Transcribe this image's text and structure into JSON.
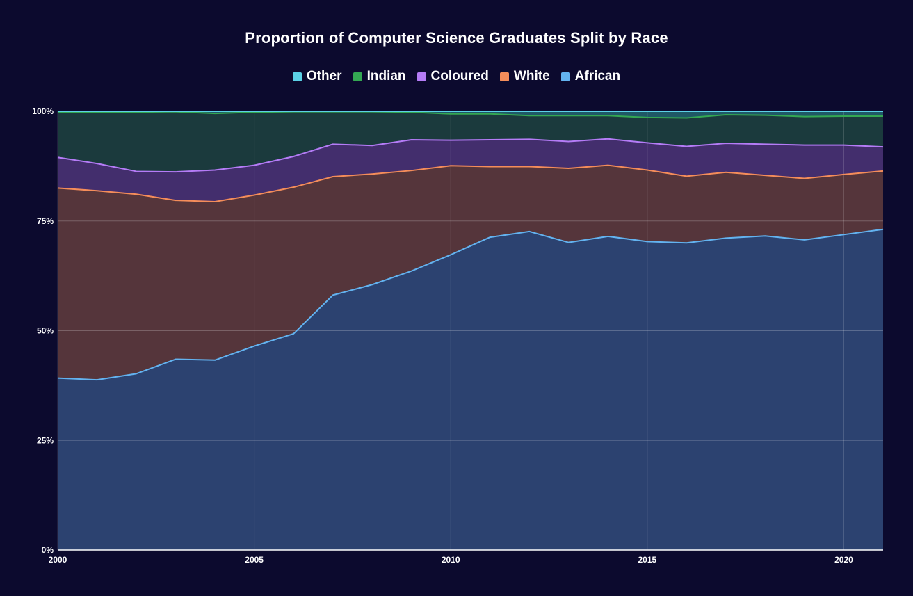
{
  "chart_data": {
    "type": "area",
    "stacked": true,
    "percent": true,
    "title": "Proportion of Computer Science Graduates Split by Race",
    "xlabel": "",
    "ylabel": "",
    "ylim": [
      0,
      100
    ],
    "xlim": [
      2000,
      2021
    ],
    "legend_position": "top",
    "x": [
      2000,
      2001,
      2002,
      2003,
      2004,
      2005,
      2006,
      2007,
      2008,
      2009,
      2010,
      2011,
      2012,
      2013,
      2014,
      2015,
      2016,
      2017,
      2018,
      2019,
      2020,
      2021
    ],
    "x_ticks": [
      "2000",
      "2005",
      "2010",
      "2015",
      "2020"
    ],
    "y_ticks": [
      "0%",
      "25%",
      "50%",
      "75%",
      "100%"
    ],
    "legend": [
      "Other",
      "Indian",
      "Coloured",
      "White",
      "African"
    ],
    "colors": {
      "Other": "#5bd1e6",
      "Indian": "#34a853",
      "Coloured": "#b57cf7",
      "White": "#f58d5a",
      "African": "#63b3f0"
    },
    "fill_colors": {
      "Other": "#1f5866",
      "Indian": "#1b3a3d",
      "Coloured": "#432e6d",
      "White": "#55353b",
      "African": "#2c4270"
    },
    "series": [
      {
        "name": "African",
        "values": [
          39.2,
          38.8,
          40.2,
          43.5,
          43.3,
          46.5,
          49.3,
          58.1,
          60.5,
          63.6,
          67.3,
          71.3,
          72.6,
          70.1,
          71.5,
          70.3,
          70.0,
          71.1,
          71.6,
          70.7,
          71.9,
          73.1
        ]
      },
      {
        "name": "White",
        "values": [
          43.3,
          43.1,
          40.9,
          36.2,
          36.1,
          34.4,
          33.4,
          27.0,
          25.2,
          22.9,
          20.3,
          16.1,
          14.8,
          16.9,
          16.2,
          16.3,
          15.2,
          15.0,
          13.8,
          14.0,
          13.7,
          13.3
        ]
      },
      {
        "name": "Coloured",
        "values": [
          7.0,
          6.2,
          5.2,
          6.5,
          7.2,
          6.8,
          7.0,
          7.4,
          6.5,
          7.0,
          5.8,
          6.1,
          6.2,
          6.1,
          6.0,
          6.2,
          6.8,
          6.6,
          7.1,
          7.6,
          6.7,
          5.5
        ]
      },
      {
        "name": "Indian",
        "values": [
          10.2,
          11.6,
          13.5,
          13.7,
          12.9,
          12.1,
          10.2,
          7.4,
          7.7,
          6.3,
          6.0,
          5.9,
          5.4,
          5.9,
          5.3,
          5.8,
          6.5,
          6.5,
          6.6,
          6.5,
          6.6,
          7.0
        ]
      },
      {
        "name": "Other",
        "values": [
          0.3,
          0.3,
          0.2,
          0.1,
          0.5,
          0.2,
          0.1,
          0.1,
          0.1,
          0.2,
          0.6,
          0.6,
          1.0,
          1.0,
          1.0,
          1.4,
          1.5,
          0.8,
          0.9,
          1.2,
          1.1,
          1.1
        ]
      }
    ]
  }
}
